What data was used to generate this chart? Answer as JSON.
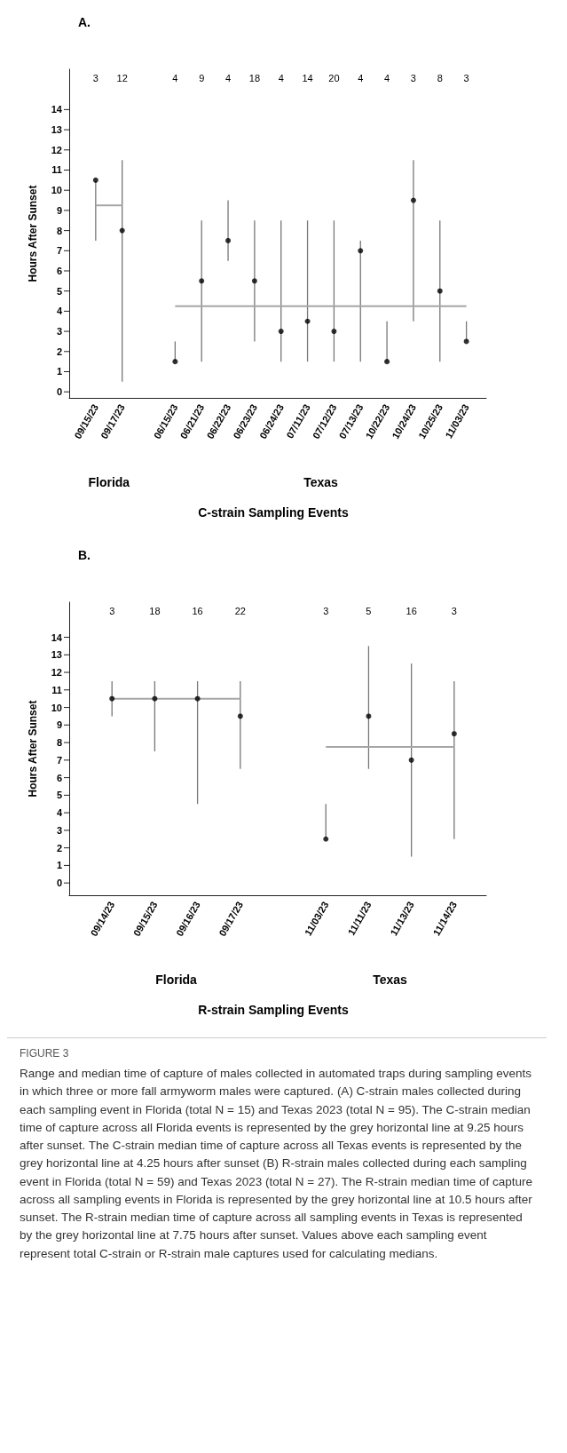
{
  "chart_data": [
    {
      "type": "scatter",
      "title": "A.",
      "xlabel": "C-strain Sampling Events",
      "ylabel": "Hours After Sunset",
      "grid": false,
      "ylim": [
        -0.3,
        16
      ],
      "yticks": [
        0,
        1,
        2,
        3,
        4,
        5,
        6,
        7,
        8,
        9,
        10,
        11,
        12,
        13,
        14
      ],
      "categories": [
        "09/15/23",
        "09/17/23",
        null,
        "06/15/23",
        "06/21/23",
        "06/22/23",
        "06/23/23",
        "06/24/23",
        "07/11/23",
        "07/12/23",
        "07/13/23",
        "10/22/23",
        "10/24/23",
        "10/25/23",
        "11/03/23"
      ],
      "series": [
        {
          "type": "scatter",
          "marker": "circle",
          "color": "#000000",
          "values": [
            10.5,
            8,
            null,
            1.5,
            5.5,
            7.5,
            5.5,
            3,
            3.5,
            3,
            7,
            1.5,
            9.5,
            5,
            2.5
          ],
          "errors": [
            [
              7.5,
              10.5
            ],
            [
              0.5,
              11.5
            ],
            null,
            [
              1.5,
              2.5
            ],
            [
              1.5,
              8.5
            ],
            [
              6.5,
              9.5
            ],
            [
              2.5,
              8.5
            ],
            [
              1.5,
              8.5
            ],
            [
              1.5,
              8.5
            ],
            [
              1.5,
              8.5
            ],
            [
              1.5,
              7.5
            ],
            [
              1.5,
              3.5
            ],
            [
              3.5,
              11.5
            ],
            [
              1.5,
              8.5
            ],
            [
              2.5,
              3.5
            ]
          ]
        },
        {
          "type": "line",
          "color": "#a6a6a6",
          "x": [
            "09/15/23",
            "09/17/23"
          ],
          "values": [
            9.25,
            9.25
          ]
        },
        {
          "type": "line",
          "color": "#a6a6a6",
          "x": [
            "06/15/23",
            "11/03/23"
          ],
          "values": [
            4.25,
            4.25
          ]
        }
      ],
      "annotations": [
        "3",
        "12",
        "4",
        "9",
        "4",
        "18",
        "4",
        "14",
        "20",
        "4",
        "4",
        "3",
        "8",
        "3",
        "Florida",
        "Texas"
      ]
    },
    {
      "type": "scatter",
      "title": "B.",
      "xlabel": "R-strain Sampling Events",
      "ylabel": "Hours After Sunset",
      "grid": false,
      "ylim": [
        -0.7,
        16
      ],
      "yticks": [
        0,
        1,
        2,
        3,
        4,
        5,
        6,
        7,
        8,
        9,
        10,
        11,
        12,
        13,
        14
      ],
      "categories": [
        "09/14/23",
        "09/15/23",
        "09/16/23",
        "09/17/23",
        null,
        "11/03/23",
        "11/11/23",
        "11/13/23",
        "11/14/23"
      ],
      "series": [
        {
          "type": "scatter",
          "marker": "circle",
          "color": "#000000",
          "values": [
            10.5,
            10.5,
            10.5,
            9.5,
            null,
            2.5,
            9.5,
            7,
            8.5
          ],
          "errors": [
            [
              9.5,
              11.5
            ],
            [
              7.5,
              11.5
            ],
            [
              4.5,
              11.5
            ],
            [
              6.5,
              11.5
            ],
            null,
            [
              2.5,
              4.5
            ],
            [
              6.5,
              13.5
            ],
            [
              1.5,
              12.5
            ],
            [
              2.5,
              11.5
            ]
          ]
        },
        {
          "type": "line",
          "color": "#a6a6a6",
          "x": [
            "09/14/23",
            "09/17/23"
          ],
          "values": [
            10.5,
            10.5
          ]
        },
        {
          "type": "line",
          "color": "#a6a6a6",
          "x": [
            "11/03/23",
            "11/14/23"
          ],
          "values": [
            7.75,
            7.75
          ]
        }
      ],
      "annotations": [
        "3",
        "18",
        "16",
        "22",
        "3",
        "5",
        "16",
        "3",
        "Florida",
        "Texas"
      ]
    },
    {
      "type": "other",
      "title": "FIGURE 3",
      "annotations": [
        "Range and median time of capture of males collected in automated traps during sampling events in which three or more fall armyworm males were captured. (A) C-strain males collected during each sampling event in Florida (total N = 15) and Texas 2023 (total N = 95). The C-strain median time of capture across all Florida events is represented by the grey horizontal line at 9.25 hours after sunset. The C-strain median time of capture across all Texas events is represented by the grey horizontal line at 4.25 hours after sunset (B) R-strain males collected during each sampling event in Florida (total N = 59) and Texas 2023 (total N = 27). The R-strain median time of capture across all sampling events in Florida is represented by the grey horizontal line at 10.5 hours after sunset. The R-strain median time of capture across all sampling events in Texas is represented by the grey horizontal line at 7.75 hours after sunset. Values above each sampling event represent total C-strain or R-strain male captures used for calculating medians."
      ]
    }
  ]
}
